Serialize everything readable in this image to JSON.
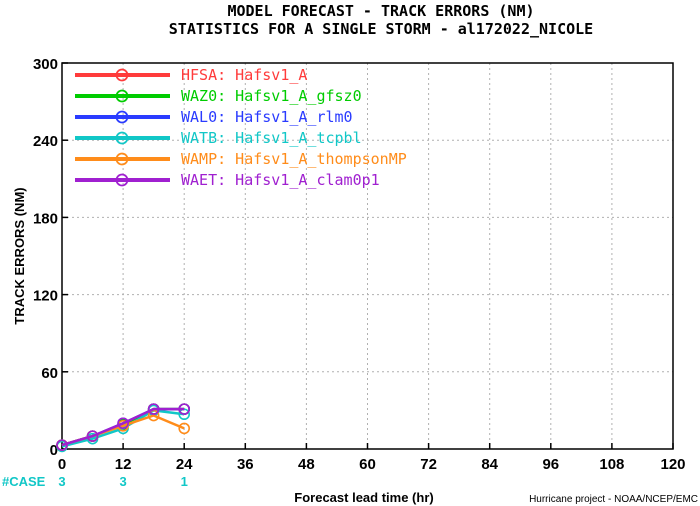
{
  "chart_data": {
    "type": "line",
    "title": "MODEL FORECAST - TRACK ERRORS (NM)",
    "subtitle": "STATISTICS FOR A SINGLE STORM - al172022_NICOLE",
    "xlabel": "Forecast lead time (hr)",
    "ylabel": "TRACK ERRORS (NM)",
    "xlim": [
      0,
      120
    ],
    "ylim": [
      0,
      300
    ],
    "x_ticks": [
      "0",
      "12",
      "24",
      "36",
      "48",
      "60",
      "72",
      "84",
      "96",
      "108",
      "120"
    ],
    "y_ticks": [
      "0",
      "60",
      "120",
      "180",
      "240",
      "300"
    ],
    "grid": true,
    "legend_position": "top-left",
    "case_label": "#CASE",
    "cases": [
      {
        "x": 0,
        "label": "3"
      },
      {
        "x": 12,
        "label": "3"
      },
      {
        "x": 24,
        "label": "1"
      }
    ],
    "credit": "Hurricane project - NOAA/NCEP/EMC",
    "series": [
      {
        "name": "HFSA: Hafsv1_A",
        "color": "#ff3b3b",
        "points": [
          [
            0,
            3
          ],
          [
            6,
            10
          ],
          [
            12,
            19
          ],
          [
            18,
            31
          ],
          [
            24,
            31
          ]
        ]
      },
      {
        "name": "WAZ0: Hafsv1_A_gfsz0",
        "color": "#00cc00",
        "points": [
          [
            0,
            3
          ],
          [
            6,
            10
          ],
          [
            12,
            19
          ],
          [
            18,
            31
          ],
          [
            24,
            31
          ]
        ]
      },
      {
        "name": "WAL0: Hafsv1_A_rlm0",
        "color": "#2a3bff",
        "points": [
          [
            0,
            3
          ],
          [
            6,
            10
          ],
          [
            12,
            20
          ],
          [
            18,
            31
          ],
          [
            24,
            31
          ]
        ]
      },
      {
        "name": "WATB: Hafsv1_A_tcpbl",
        "color": "#11c7c7",
        "points": [
          [
            0,
            2
          ],
          [
            6,
            8
          ],
          [
            12,
            16
          ],
          [
            18,
            30
          ],
          [
            24,
            27
          ]
        ]
      },
      {
        "name": "WAMP: Hafsv1_A_thompsonMP",
        "color": "#ff8c1a",
        "points": [
          [
            0,
            3
          ],
          [
            6,
            10
          ],
          [
            12,
            18
          ],
          [
            18,
            26
          ],
          [
            24,
            16
          ]
        ]
      },
      {
        "name": "WAET: Hafsv1_A_clam0p1",
        "color": "#a020d0",
        "points": [
          [
            0,
            3
          ],
          [
            6,
            10
          ],
          [
            12,
            20
          ],
          [
            18,
            31
          ],
          [
            24,
            31
          ]
        ]
      }
    ]
  }
}
